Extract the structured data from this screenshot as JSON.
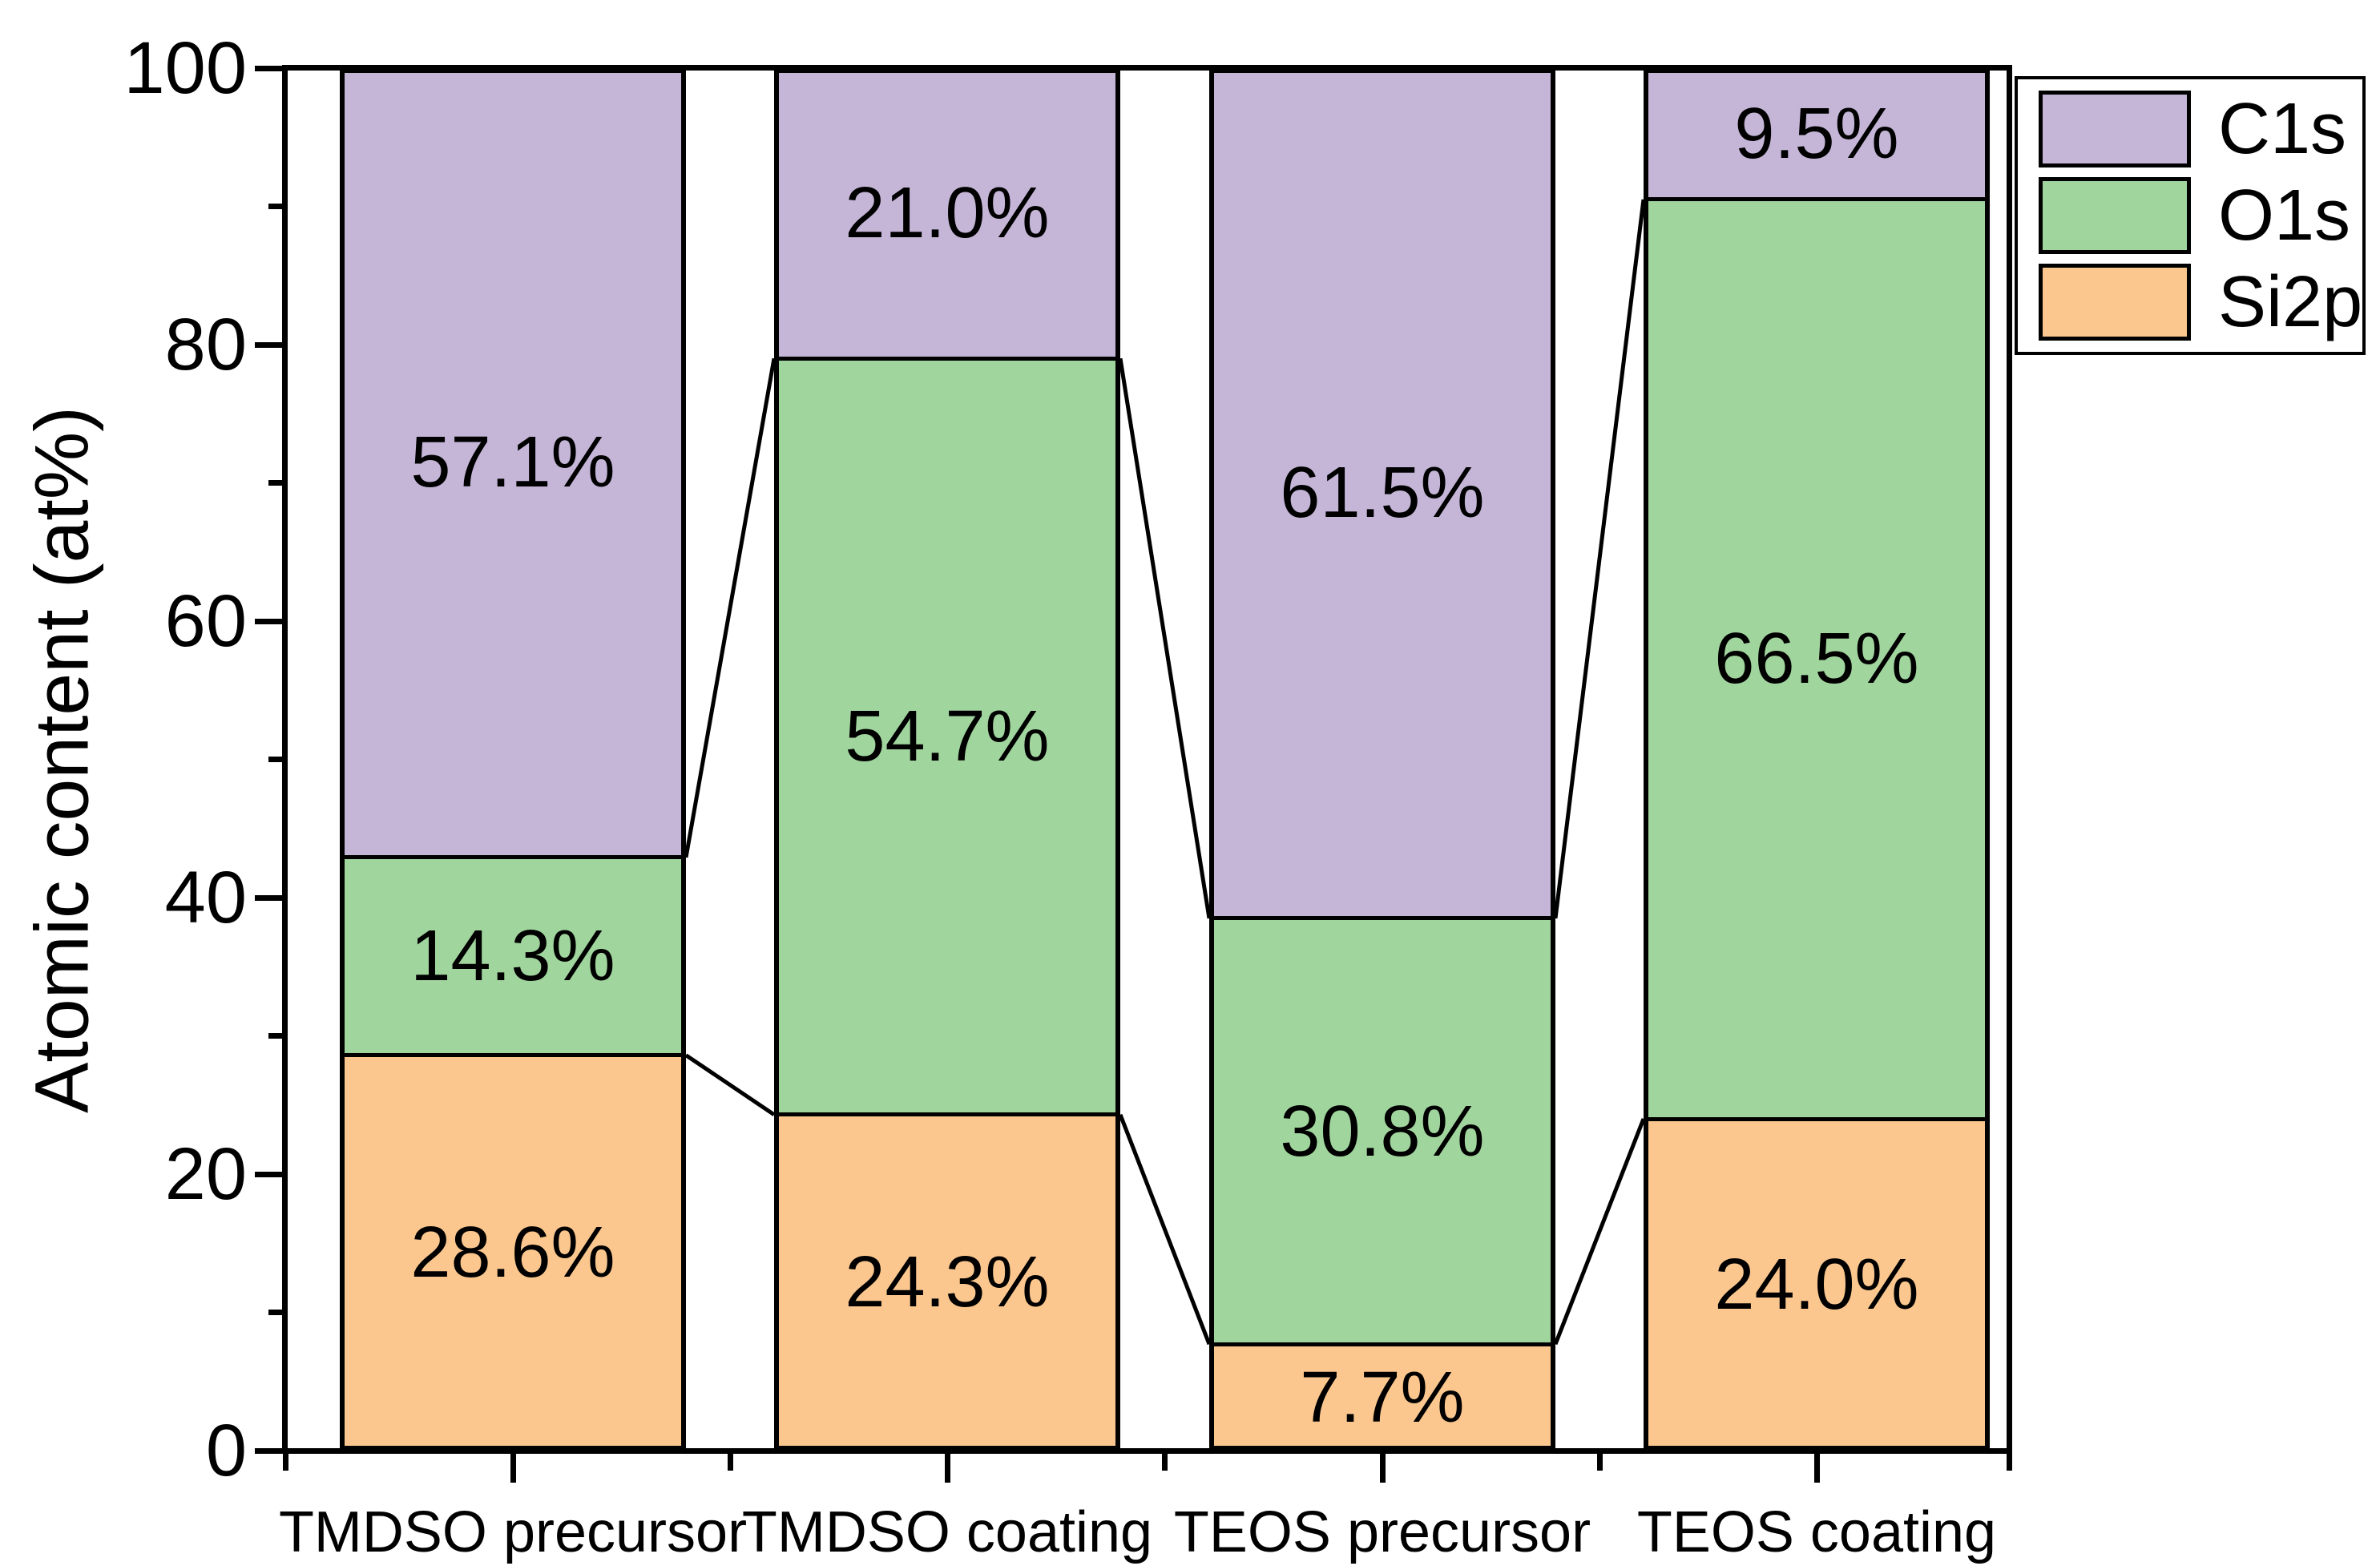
{
  "chart_data": {
    "type": "bar",
    "stacked": true,
    "title": "",
    "ylabel": "Atomic content (at%)",
    "xlabel": "",
    "ylim": [
      0,
      100
    ],
    "yticks_major": [
      0,
      20,
      40,
      60,
      80,
      100
    ],
    "yticks_minor": [
      10,
      30,
      50,
      70,
      90
    ],
    "grid": false,
    "legend_position": "top-right-outside",
    "categories": [
      "TMDSO precursor",
      "TMDSO coating",
      "TEOS precursor",
      "TEOS coating"
    ],
    "series": [
      {
        "name": "Si2p",
        "color": "#FBC78E",
        "values": [
          28.6,
          24.3,
          7.7,
          24.0
        ],
        "labels": [
          "28.6%",
          "24.3%",
          "7.7%",
          "24.0%"
        ]
      },
      {
        "name": "O1s",
        "color": "#A1D59E",
        "values": [
          14.3,
          54.7,
          30.8,
          66.5
        ],
        "labels": [
          "14.3%",
          "54.7%",
          "30.8%",
          "66.5%"
        ]
      },
      {
        "name": "C1s",
        "color": "#C5B6D8",
        "values": [
          57.1,
          21.0,
          61.5,
          9.5
        ],
        "labels": [
          "57.1%",
          "21.0%",
          "61.5%",
          "9.5%"
        ]
      }
    ],
    "legend": {
      "items": [
        {
          "label": "C1s",
          "color": "#C5B6D8"
        },
        {
          "label": "O1s",
          "color": "#A1D59E"
        },
        {
          "label": "Si2p",
          "color": "#FBC78E"
        }
      ]
    },
    "connectors_between_bars": true,
    "axis_color": "#000000",
    "bar_border_color": "#000000"
  }
}
